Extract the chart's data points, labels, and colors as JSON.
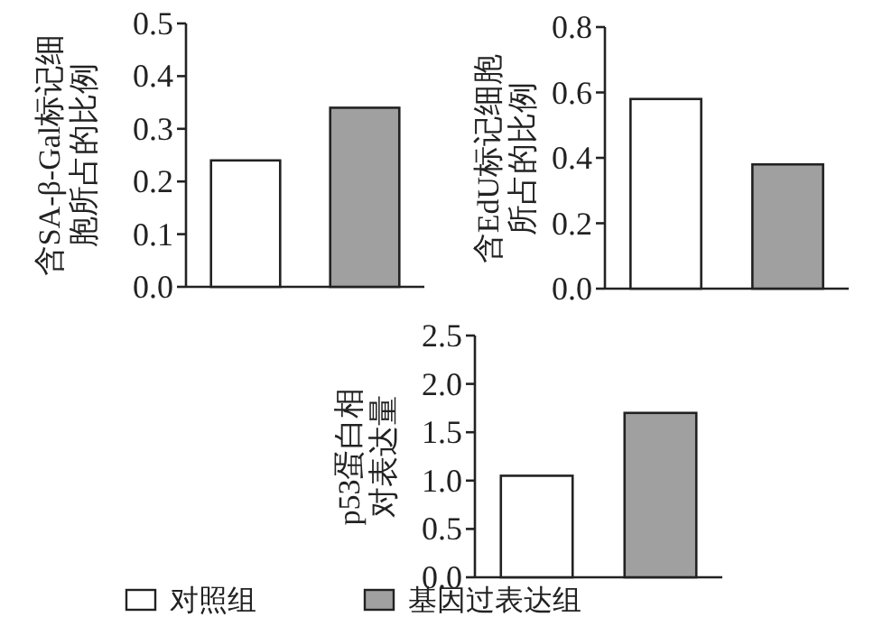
{
  "chart_data": [
    {
      "type": "bar",
      "ylabel": "含SA-β-Gal标记细胞所占的比例",
      "categories": [
        null,
        null
      ],
      "series": [
        {
          "color": "#ffffff",
          "values": [
            0.24,
            null
          ]
        },
        {
          "color": "#a0a0a0",
          "values": [
            null,
            0.34
          ]
        }
      ],
      "ylim": [
        0,
        0.5
      ],
      "yticks": [
        {
          "value": 0,
          "label": "0.0"
        },
        0.1,
        0.2,
        0.3,
        0.4,
        0.5
      ],
      "tick_labels": "y"
    },
    {
      "type": "bar",
      "ylabel": "含EdU标记细胞所占的比例",
      "categories": [
        null,
        null
      ],
      "series": [
        {
          "color": "#ffffff",
          "values": [
            0.58,
            null
          ]
        },
        {
          "color": "#a0a0a0",
          "values": [
            null,
            0.38
          ]
        }
      ],
      "ylim": [
        0,
        0.8
      ],
      "yticks": [
        {
          "value": 0,
          "label": "0.0"
        },
        0.2,
        0.4,
        0.6,
        0.8
      ],
      "tick_labels": "y"
    },
    {
      "type": "bar",
      "ylabel": "p53蛋白相对表达量",
      "categories": [
        null,
        null
      ],
      "series": [
        {
          "name": "对照组",
          "color": "#ffffff",
          "values": [
            1.05,
            null
          ]
        },
        {
          "name": "基因过表达组",
          "color": "#a0a0a0",
          "values": [
            null,
            1.7
          ]
        }
      ],
      "ylim": [
        0,
        2.5
      ],
      "yticks": [
        {
          "value": 0,
          "label": "0.0"
        },
        0.5,
        {
          "value": 1,
          "label": "1.0"
        },
        1.5,
        {
          "value": 2,
          "label": "2.0"
        },
        2.5
      ],
      "tick_labels": "y",
      "legend": "bottom"
    }
  ]
}
